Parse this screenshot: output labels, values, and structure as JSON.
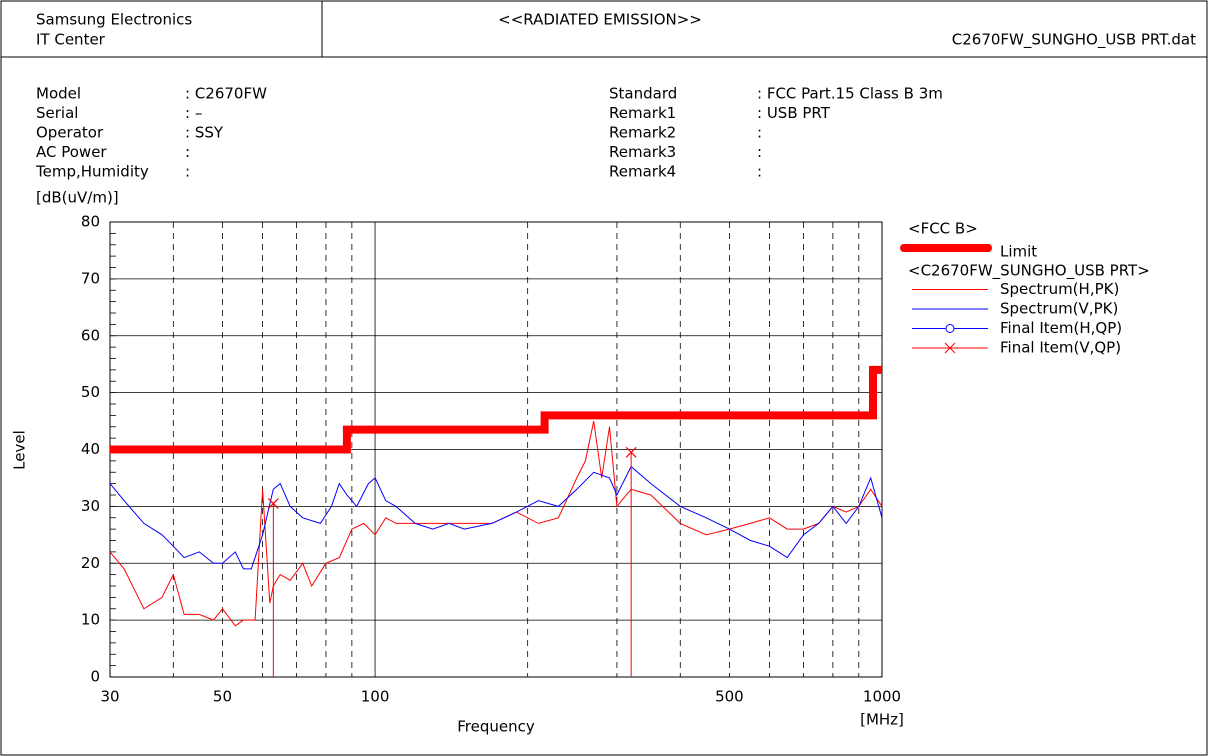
{
  "header": {
    "company": "Samsung Electronics",
    "dept": "IT Center",
    "title": "<<RADIATED EMISSION>>",
    "file": "C2670FW_SUNGHO_USB PRT.dat"
  },
  "info_left": [
    {
      "label": "Model",
      "value": ": C2670FW"
    },
    {
      "label": "Serial",
      "value": ": –"
    },
    {
      "label": "Operator",
      "value": ": SSY"
    },
    {
      "label": "AC Power",
      "value": ":"
    },
    {
      "label": "Temp,Humidity",
      "value": ":"
    }
  ],
  "info_right": [
    {
      "label": "Standard",
      "value": ": FCC Part.15 Class B 3m"
    },
    {
      "label": "Remark1",
      "value": ": USB PRT"
    },
    {
      "label": "Remark2",
      "value": ":"
    },
    {
      "label": "Remark3",
      "value": ":"
    },
    {
      "label": "Remark4",
      "value": ":"
    }
  ],
  "chart_data": {
    "type": "line",
    "x_label": "Frequency",
    "x_unit": "[MHz]",
    "y_label": "Level",
    "y_unit": "[dB(uV/m)]",
    "x_scale": "log",
    "xlim": [
      30,
      1000
    ],
    "xticks": [
      30,
      50,
      100,
      500,
      1000
    ],
    "xgrid": [
      40,
      50,
      60,
      70,
      80,
      90,
      100,
      200,
      300,
      400,
      500,
      600,
      700,
      800,
      900
    ],
    "ylim": [
      0,
      80
    ],
    "yticks": [
      0,
      10,
      20,
      30,
      40,
      50,
      60,
      70,
      80
    ],
    "grid": true,
    "legend_groups": [
      "<FCC B>",
      "<C2670FW_SUNGHO_USB PRT>"
    ],
    "series": [
      {
        "name": "Limit",
        "color": "#ff0000",
        "width": 8,
        "marker": "none",
        "x": [
          30,
          88,
          88,
          216,
          216,
          960,
          960,
          1000
        ],
        "values": [
          40,
          40,
          43.5,
          43.5,
          46,
          46,
          54,
          54
        ]
      },
      {
        "name": "Spectrum(H,PK)",
        "color": "#ff0000",
        "width": 1,
        "marker": "none",
        "x": [
          30,
          32,
          35,
          38,
          40,
          42,
          45,
          48,
          50,
          53,
          55,
          58,
          60,
          62,
          63,
          65,
          68,
          72,
          75,
          80,
          85,
          90,
          95,
          100,
          105,
          110,
          120,
          130,
          150,
          170,
          190,
          210,
          230,
          250,
          260,
          270,
          280,
          290,
          300,
          320,
          350,
          400,
          450,
          500,
          550,
          600,
          650,
          700,
          750,
          800,
          850,
          900,
          950,
          1000
        ],
        "values": [
          22,
          19,
          12,
          14,
          18,
          11,
          11,
          10,
          12,
          9,
          10,
          10,
          33,
          13,
          16,
          18,
          17,
          20,
          16,
          20,
          21,
          26,
          27,
          25,
          28,
          27,
          27,
          27,
          27,
          27,
          29,
          27,
          28,
          35,
          38,
          45,
          35,
          44,
          30,
          33,
          32,
          27,
          25,
          26,
          27,
          28,
          26,
          26,
          27,
          30,
          29,
          30,
          33,
          30
        ]
      },
      {
        "name": "Spectrum(V,PK)",
        "color": "#0000ff",
        "width": 1,
        "marker": "none",
        "x": [
          30,
          32,
          35,
          38,
          40,
          42,
          45,
          48,
          50,
          53,
          55,
          57,
          60,
          63,
          65,
          68,
          72,
          78,
          82,
          85,
          88,
          92,
          97,
          100,
          105,
          110,
          120,
          130,
          140,
          150,
          170,
          190,
          210,
          230,
          250,
          270,
          290,
          300,
          320,
          350,
          400,
          450,
          500,
          550,
          600,
          650,
          700,
          750,
          800,
          850,
          900,
          950,
          1000
        ],
        "values": [
          34,
          31,
          27,
          25,
          23,
          21,
          22,
          20,
          20,
          22,
          19,
          19,
          25,
          33,
          34,
          30,
          28,
          27,
          30,
          34,
          32,
          30,
          34,
          35,
          31,
          30,
          27,
          26,
          27,
          26,
          27,
          29,
          31,
          30,
          33,
          36,
          35,
          32,
          37,
          34,
          30,
          28,
          26,
          24,
          23,
          21,
          25,
          27,
          30,
          27,
          30,
          35,
          28
        ]
      },
      {
        "name": "Final Item(H,QP)",
        "color": "#0000ff",
        "width": 1,
        "marker": "circle",
        "x": [],
        "values": []
      },
      {
        "name": "Final Item(V,QP)",
        "color": "#ff0000",
        "width": 1,
        "marker": "cross",
        "x": [
          63,
          320
        ],
        "values": [
          30.5,
          39.5
        ]
      }
    ]
  }
}
